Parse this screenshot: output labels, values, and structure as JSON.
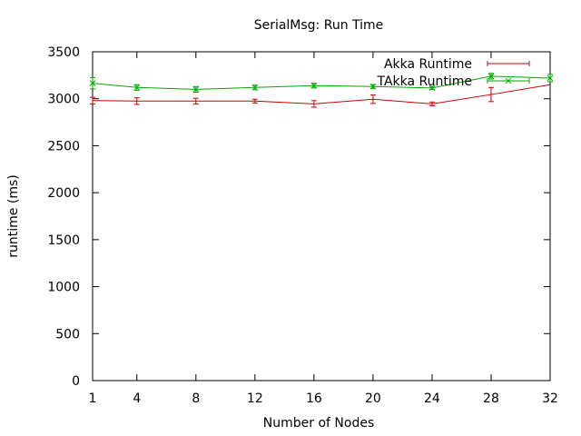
{
  "chart_data": {
    "type": "line",
    "title": "SerialMsg: Run Time",
    "xlabel": "Number of Nodes",
    "ylabel": "runtime (ms)",
    "x": [
      1,
      4,
      8,
      12,
      16,
      20,
      24,
      28,
      32
    ],
    "xticks": [
      "1",
      "4",
      "8",
      "12",
      "16",
      "20",
      "24",
      "28",
      "32"
    ],
    "xlim": [
      1,
      32
    ],
    "yticks": [
      "0",
      "500",
      "1000",
      "1500",
      "2000",
      "2500",
      "3000",
      "3500"
    ],
    "ylim": [
      0,
      3500
    ],
    "grid": false,
    "legend_position": "top-right",
    "series": [
      {
        "name": "Akka Runtime",
        "color": "#cc0000",
        "marker": "none",
        "values": [
          2980,
          2975,
          2975,
          2975,
          2945,
          2995,
          2945,
          3045,
          3150
        ],
        "err": [
          35,
          35,
          30,
          20,
          35,
          45,
          20,
          75,
          0
        ]
      },
      {
        "name": "TAkka Runtime",
        "color": "#00aa00",
        "marker": "x",
        "values": [
          3165,
          3120,
          3100,
          3120,
          3140,
          3130,
          3115,
          3240,
          3220
        ],
        "err": [
          60,
          30,
          30,
          25,
          25,
          20,
          15,
          30,
          40
        ]
      }
    ]
  }
}
